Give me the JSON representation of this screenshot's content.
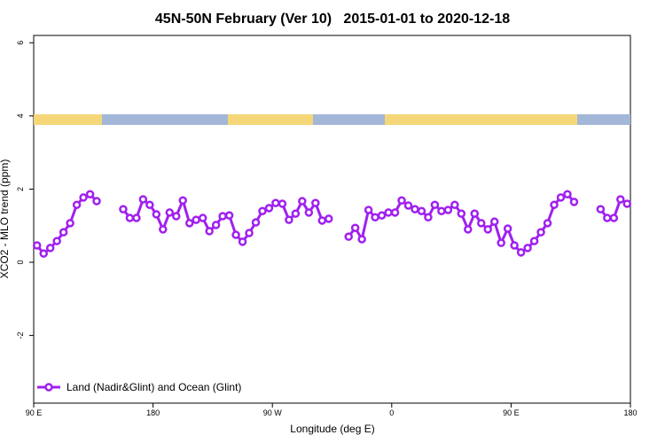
{
  "chart_data": {
    "type": "line",
    "title": "45N-50N February (Ver 10)   2015-01-01 to 2020-12-18",
    "x_label": "Longitude (deg E)",
    "y_label": "XCO2 - MLO trend (ppm)",
    "xlim": [
      90,
      540
    ],
    "ylim": [
      -3.85,
      6.2
    ],
    "xticks": [
      {
        "value": 90,
        "label": "90 E"
      },
      180,
      {
        "value": 270,
        "label": "90 W"
      },
      {
        "value": 360,
        "label": "0"
      },
      {
        "value": 450,
        "label": "90 E"
      },
      {
        "value": 540,
        "label": "180"
      }
    ],
    "yticks": [
      -2,
      0,
      2,
      4,
      6
    ],
    "legend": "bottom-left",
    "x": [
      92.5,
      97.5,
      102.5,
      107.5,
      112.5,
      117.5,
      122.5,
      127.5,
      132.5,
      137.5,
      142.5,
      147.5,
      152.5,
      157.5,
      162.5,
      167.5,
      172.5,
      177.5,
      182.5,
      187.5,
      192.5,
      197.5,
      202.5,
      207.5,
      212.5,
      217.5,
      222.5,
      227.5,
      232.5,
      237.5,
      242.5,
      247.5,
      252.5,
      257.5,
      262.5,
      267.5,
      272.5,
      277.5,
      282.5,
      287.5,
      292.5,
      297.5,
      302.5,
      307.5,
      312.5,
      317.5,
      322.5,
      327.5,
      332.5,
      337.5,
      342.5,
      347.5,
      352.5,
      357.5,
      362.5,
      367.5,
      372.5,
      377.5,
      382.5,
      387.5,
      392.5,
      397.5,
      402.5,
      407.5,
      412.5,
      417.5,
      422.5,
      427.5,
      432.5,
      437.5,
      442.5,
      447.5,
      452.5,
      457.5,
      462.5,
      467.5,
      472.5,
      477.5,
      482.5,
      487.5,
      492.5,
      497.5,
      502.5,
      507.5,
      512.5,
      517.5,
      522.5,
      527.5,
      532.5,
      537.5
    ],
    "series": [
      {
        "name": "Land (Nadir&Glint) and Ocean (Glint)",
        "color": "#a020f0",
        "values": [
          0.46,
          0.24,
          0.39,
          0.58,
          0.82,
          1.07,
          1.57,
          1.77,
          1.86,
          1.67,
          null,
          null,
          null,
          1.45,
          1.21,
          1.21,
          1.72,
          1.57,
          1.31,
          0.9,
          1.36,
          1.26,
          1.69,
          1.07,
          1.16,
          1.21,
          0.85,
          1.02,
          1.26,
          1.28,
          0.75,
          0.56,
          0.8,
          1.09,
          1.4,
          1.48,
          1.62,
          1.6,
          1.16,
          1.33,
          1.67,
          1.36,
          1.62,
          1.14,
          1.19,
          null,
          null,
          0.7,
          0.94,
          0.63,
          1.43,
          1.23,
          1.28,
          1.36,
          1.36,
          1.69,
          1.55,
          1.45,
          1.4,
          1.23,
          1.57,
          1.4,
          1.43,
          1.57,
          1.33,
          0.9,
          1.33,
          1.07,
          0.9,
          1.11,
          0.53,
          0.92,
          0.46,
          0.27,
          0.39,
          0.58,
          0.82,
          1.07,
          1.57,
          1.77,
          1.86,
          1.65,
          null,
          null,
          null,
          1.45,
          1.21,
          1.21,
          1.72,
          1.6
        ]
      }
    ]
  }
}
